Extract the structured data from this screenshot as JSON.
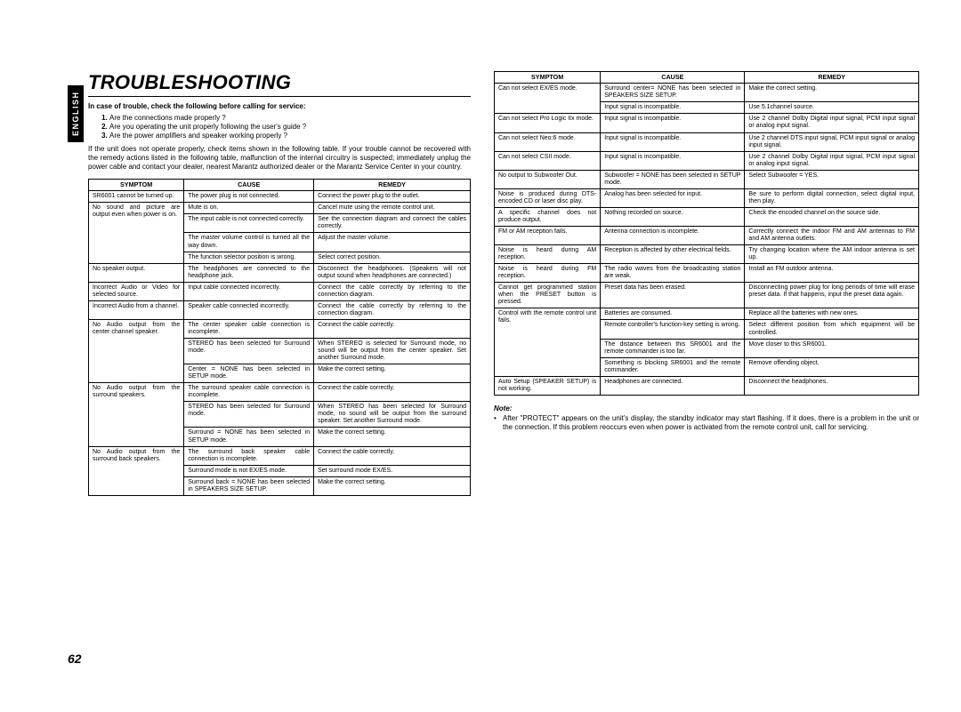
{
  "sideTab": "ENGLISH",
  "pageNumber": "62",
  "title": "TROUBLESHOOTING",
  "lead": "In case of trouble, check the following before calling for service:",
  "checks": [
    "Are the connections made properly ?",
    "Are you operating the unit properly following the user's guide ?",
    "Are the power amplifiers and speaker working properly ?"
  ],
  "para": "If the unit does not operate properly, check items shown in the following table.\nIf your trouble cannot be recovered with the remedy actions listed in the following table, malfunction of the internal circuitry is suspected; immediately unplug the power cable and contact your dealer, nearest Marantz authorized dealer or the Marantz Service Center in your country.",
  "headers": {
    "c1": "SYMPTOM",
    "c2": "CAUSE",
    "c3": "REMEDY"
  },
  "tableLeft": [
    {
      "s": "SR6001 cannot be turned up.",
      "rows": [
        {
          "c": "The power plug is not connected.",
          "r": "Connect the power plug to the outlet."
        }
      ]
    },
    {
      "s": "No sound and picture are output even when power is on.",
      "rows": [
        {
          "c": "Mute is on.",
          "r": "Cancel mute using the remote control unit."
        },
        {
          "c": "The input cable is not connected correctly.",
          "r": "See the connection diagram and connect the cables correctly."
        },
        {
          "c": "The master volume control is turned all the way down.",
          "r": "Adjust the master volume."
        },
        {
          "c": "The function selector position is wrong.",
          "r": "Select correct position."
        }
      ]
    },
    {
      "s": "No speaker output.",
      "rows": [
        {
          "c": "The headphones are connected to the headphone jack.",
          "r": "Disconnect the headphones. (Speakers will not output sound when headphones are connected.)"
        }
      ]
    },
    {
      "s": "Incorrect Audio or Video for selected source.",
      "rows": [
        {
          "c": "Input cable connected incorrectly.",
          "r": "Connect the cable correctly by referring to the connection diagram."
        }
      ]
    },
    {
      "s": "Incorrect Audio from a channel.",
      "rows": [
        {
          "c": "Speaker cable connected incorrectly.",
          "r": "Connect the cable correctly by referring to the connection diagram."
        }
      ]
    },
    {
      "s": "No Audio output from the center channel speaker.",
      "rows": [
        {
          "c": "The center speaker cable connection is incomplete.",
          "r": "Connect the cable correctly."
        },
        {
          "c": "STEREO has been selected for Surround mode.",
          "r": "When STEREO is selected for Surround mode, no sound will be output from the center speaker. Set another Surround mode."
        },
        {
          "c": "Center = NONE has been selected in SETUP mode.",
          "r": "Make the correct setting."
        }
      ]
    },
    {
      "s": "No Audio output from the surround speakers.",
      "rows": [
        {
          "c": "The surround speaker cable connection is incomplete.",
          "r": "Connect the cable correctly."
        },
        {
          "c": "STEREO has been selected for Surround mode.",
          "r": "When STEREO has been selected for Surround mode, no sound will be output from the surround speaker. Set another Surround mode."
        },
        {
          "c": "Surround = NONE has been selected in SETUP mode.",
          "r": "Make the correct setting."
        }
      ]
    },
    {
      "s": "No Audio output from the surround back speakers.",
      "rows": [
        {
          "c": "The surround back speaker cable connection is incomplete.",
          "r": "Connect the cable correctly."
        },
        {
          "c": "Surround mode is not EX/ES mode.",
          "r": "Set surround mode EX/ES."
        },
        {
          "c": "Surround back = NONE has been selected in SPEAKERS SIZE SETUP.",
          "r": "Make the correct setting."
        }
      ]
    }
  ],
  "tableRight": [
    {
      "s": "Can not select EX/ES mode.",
      "rows": [
        {
          "c": "Surround center= NONE has been selected in SPEAKERS SIZE SETUP.",
          "r": "Make the correct setting."
        },
        {
          "c": "Input signal is incompatible.",
          "r": "Use 5.1channel source."
        }
      ]
    },
    {
      "s": "Can not select Pro Logic IIx mode.",
      "rows": [
        {
          "c": "Input signal is incompatible.",
          "r": "Use 2 channel Dolby Digital input signal, PCM input signal or analog input signal."
        }
      ]
    },
    {
      "s": "Can not select Neo:6 mode.",
      "rows": [
        {
          "c": "Input signal is incompatible.",
          "r": "Use 2 channel DTS input signal, PCM input signal or analog input signal."
        }
      ]
    },
    {
      "s": "Can not select CSII mode.",
      "rows": [
        {
          "c": "Input signal is incompatible.",
          "r": "Use 2 channel Dolby Digital input signal, PCM input signal or analog input signal."
        }
      ]
    },
    {
      "s": "No output to Subwoofer Out.",
      "rows": [
        {
          "c": "Subwoofer = NONE has been selected in SETUP mode.",
          "r": "Select Subwoofer = YES."
        }
      ]
    },
    {
      "s": "Noise is produced during DTS-encoded CD or laser disc play.",
      "rows": [
        {
          "c": "Analog has been selected for input.",
          "r": "Be sure to perform digital connection, select digital input, then play."
        }
      ]
    },
    {
      "s": "A specific channel does not produce output.",
      "rows": [
        {
          "c": "Nothing recorded on source.",
          "r": "Check the encoded channel on the source side."
        }
      ]
    },
    {
      "s": "FM or AM reception fails.",
      "rows": [
        {
          "c": "Antenna connection is incomplete.",
          "r": "Correctly connect the indoor FM and AM antennas to FM and AM antenna outlets."
        }
      ]
    },
    {
      "s": "Noise is heard during AM reception.",
      "rows": [
        {
          "c": "Reception is affected by other electrical fields.",
          "r": "Try changing location where the AM indoor antenna is set up."
        }
      ]
    },
    {
      "s": "Noise is heard during FM reception.",
      "rows": [
        {
          "c": "The radio waves from the broadcasting station are weak.",
          "r": "Install an FM outdoor antenna."
        }
      ]
    },
    {
      "s": "Cannot get programmed station when the PRESET button is pressed.",
      "rows": [
        {
          "c": "Preset data has been erased.",
          "r": "Disconnecting power plug for long periods of time will erase preset data. If that happens, input the preset data again."
        }
      ]
    },
    {
      "s": "Control with the remote control unit fails.",
      "rows": [
        {
          "c": "Batteries are consumed.",
          "r": "Replace all the batteries with new ones."
        },
        {
          "c": "Remote controller's function-key setting is wrong.",
          "r": "Select different position from which equipment will be controlled."
        },
        {
          "c": "The distance between this SR6001 and the remote commander is too far.",
          "r": "Move closer to this SR6001."
        },
        {
          "c": "Something is blocking SR6001 and the remote commander.",
          "r": "Remove offending object."
        }
      ]
    },
    {
      "s": "Auto Setup (SPEAKER SETUP) is not working.",
      "rows": [
        {
          "c": "Headphones are connected.",
          "r": "Disconnect the headphones."
        }
      ]
    }
  ],
  "noteHd": "Note:",
  "noteBody": "After \"PROTECT\" appears on the unit's display, the standby indicator may start flashing. If it does, there is a problem in the unit or the connection. If this problem reoccurs even when power is activated from the remote control unit, call for servicing."
}
